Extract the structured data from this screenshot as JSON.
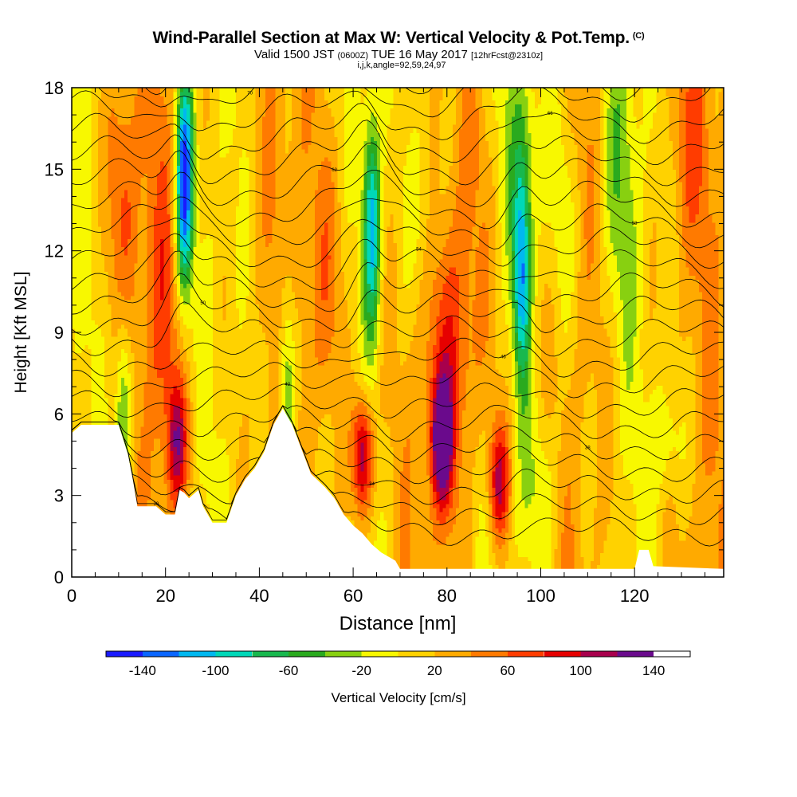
{
  "title": {
    "main": "Wind-Parallel Section at Max W: Vertical Velocity & Pot.Temp.",
    "copyright": "(C)",
    "valid_prefix": "Valid 1500 JST",
    "valid_utc": "(0600Z)",
    "valid_date": "TUE 16 May 2017",
    "forecast": "[12hrFcst@2310z]",
    "indices": "i,j,k,angle=92,59,24,97"
  },
  "colors": {
    "palette": [
      "#1a1aff",
      "#0a66ff",
      "#00b8f0",
      "#00d8b8",
      "#18b84e",
      "#2aaa1e",
      "#88d010",
      "#f8f800",
      "#ffd200",
      "#ffaa00",
      "#ff7a00",
      "#ff3c00",
      "#e60000",
      "#a8004c",
      "#6a0a8c"
    ]
  },
  "chart_data": {
    "type": "heatmap",
    "xlabel": "Distance [nm]",
    "ylabel": "Height [Kft MSL]",
    "xlim": [
      0,
      139
    ],
    "ylim": [
      0,
      18
    ],
    "x_ticks": [
      0,
      20,
      40,
      60,
      80,
      100,
      120
    ],
    "y_ticks": [
      0,
      3,
      6,
      9,
      12,
      15,
      18
    ],
    "colorbar": {
      "label": "Vertical Velocity [cm/s]",
      "boundaries": [
        -160,
        -140,
        -120,
        -100,
        -80,
        -60,
        -40,
        -20,
        0,
        20,
        40,
        60,
        80,
        100,
        120,
        140,
        160
      ],
      "tick_labels": [
        -140,
        -100,
        -60,
        -20,
        20,
        60,
        100,
        140
      ]
    },
    "terrain_kft": [
      [
        0,
        5.3
      ],
      [
        2,
        5.6
      ],
      [
        10,
        5.6
      ],
      [
        12,
        4.5
      ],
      [
        13,
        3.6
      ],
      [
        14,
        2.6
      ],
      [
        16,
        2.6
      ],
      [
        18,
        2.6
      ],
      [
        20,
        2.3
      ],
      [
        22,
        2.3
      ],
      [
        23,
        3.2
      ],
      [
        24,
        3.1
      ],
      [
        25,
        2.9
      ],
      [
        27,
        3.2
      ],
      [
        28,
        2.6
      ],
      [
        30,
        2.0
      ],
      [
        33,
        2.0
      ],
      [
        35,
        3.0
      ],
      [
        37,
        3.6
      ],
      [
        39,
        4.0
      ],
      [
        41,
        4.6
      ],
      [
        43,
        5.6
      ],
      [
        45,
        6.2
      ],
      [
        47,
        5.6
      ],
      [
        49,
        4.7
      ],
      [
        51,
        3.8
      ],
      [
        54,
        3.3
      ],
      [
        56,
        2.9
      ],
      [
        58,
        2.3
      ],
      [
        60,
        1.9
      ],
      [
        62,
        1.6
      ],
      [
        64,
        1.2
      ],
      [
        66,
        0.9
      ],
      [
        69,
        0.6
      ],
      [
        70,
        0.3
      ],
      [
        120,
        0.3
      ],
      [
        121,
        1.0
      ],
      [
        123,
        1.0
      ],
      [
        124,
        0.4
      ],
      [
        139,
        0.3
      ]
    ],
    "updrafts": [
      {
        "x": 79,
        "z": 5.0,
        "w_max": 150
      },
      {
        "x": 62,
        "z": 4.5,
        "w_max": 140
      },
      {
        "x": 91,
        "z": 3.5,
        "w_max": 120
      },
      {
        "x": 22.5,
        "z": 5.0,
        "w_max": 100
      }
    ],
    "downdrafts": [
      {
        "x": 24,
        "z": 14.5,
        "w_min": -140
      },
      {
        "x": 64,
        "z": 13.0,
        "w_min": -100
      },
      {
        "x": 96,
        "z": 11.0,
        "w_min": -100
      },
      {
        "x": 11,
        "z": 6.0,
        "w_min": -60
      },
      {
        "x": 46,
        "z": 7.0,
        "w_min": -60
      }
    ],
    "isentrope_labels": [
      "30",
      "34",
      "38",
      "42",
      "46",
      "50",
      "54",
      "58",
      "62",
      "66",
      "70",
      "74"
    ],
    "grid": false,
    "legend": "bottom"
  }
}
